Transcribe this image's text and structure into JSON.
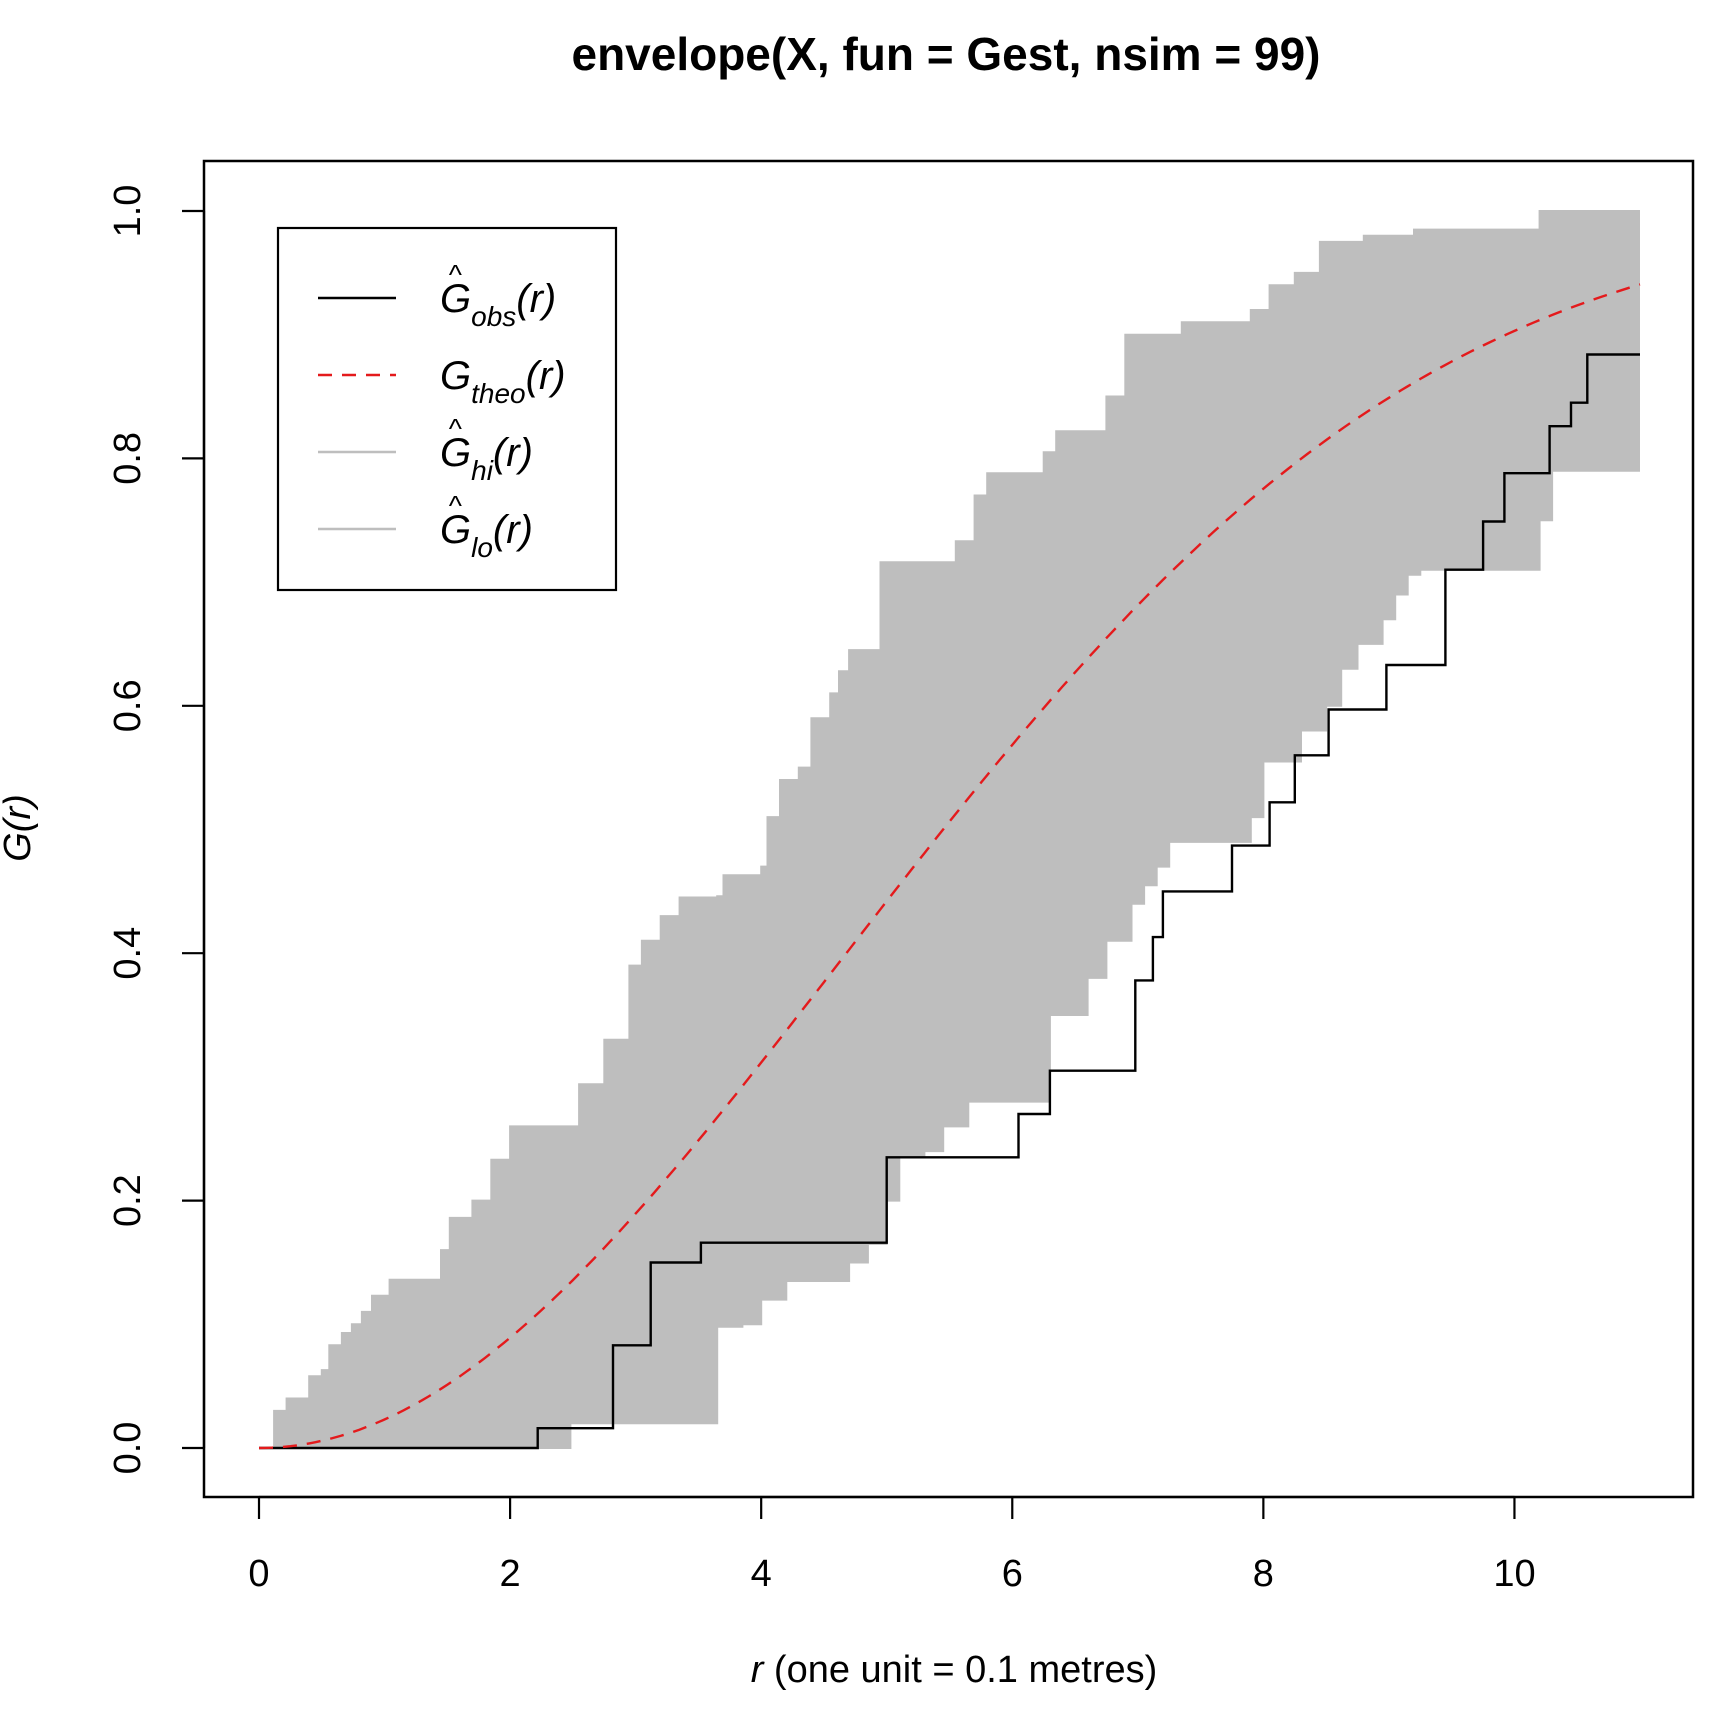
{
  "chart_data": {
    "type": "line",
    "title": "envelope(X, fun = Gest, nsim = 99)",
    "xlabel": {
      "var": "r",
      "rest": " (one unit = 0.1 metres)"
    },
    "ylabel": {
      "main": "G",
      "arg": "(r)"
    },
    "xlim": [
      0,
      11
    ],
    "ylim": [
      0,
      1
    ],
    "x_ticks": [
      0,
      2,
      4,
      6,
      8,
      10
    ],
    "x_tick_labels": [
      "0",
      "2",
      "4",
      "6",
      "8",
      "10"
    ],
    "y_ticks": [
      0,
      0.2,
      0.4,
      0.6,
      0.8,
      1.0
    ],
    "y_tick_labels": [
      "0.0",
      "0.2",
      "0.4",
      "0.6",
      "0.8",
      "1.0"
    ],
    "legend_position": "top-left",
    "colors": {
      "obs": "#000000",
      "theo": "#e41a1c",
      "envelope": "#bebebe"
    },
    "legend": [
      {
        "main": "G",
        "hat": "^",
        "sub": "obs",
        "arg": "(r)",
        "color": "#000000",
        "dash": "solid"
      },
      {
        "main": "G",
        "hat": "",
        "sub": "theo",
        "arg": "(r)",
        "color": "#e41a1c",
        "dash": "dashed"
      },
      {
        "main": "G",
        "hat": "^",
        "sub": "hi",
        "arg": "(r)",
        "color": "#bebebe",
        "dash": "solid"
      },
      {
        "main": "G",
        "hat": "^",
        "sub": "lo",
        "arg": "(r)",
        "color": "#bebebe",
        "dash": "solid"
      }
    ],
    "series": [
      {
        "key": "obs",
        "step": true,
        "points": [
          [
            0,
            0
          ],
          [
            2.22,
            0
          ],
          [
            2.22,
            0.016
          ],
          [
            2.82,
            0.016
          ],
          [
            2.82,
            0.083
          ],
          [
            3.12,
            0.083
          ],
          [
            3.12,
            0.15
          ],
          [
            3.52,
            0.15
          ],
          [
            3.52,
            0.166
          ],
          [
            5.0,
            0.166
          ],
          [
            5.0,
            0.235
          ],
          [
            6.05,
            0.235
          ],
          [
            6.05,
            0.27
          ],
          [
            6.3,
            0.27
          ],
          [
            6.3,
            0.305
          ],
          [
            6.98,
            0.305
          ],
          [
            6.98,
            0.378
          ],
          [
            7.12,
            0.378
          ],
          [
            7.12,
            0.413
          ],
          [
            7.2,
            0.413
          ],
          [
            7.2,
            0.45
          ],
          [
            7.75,
            0.45
          ],
          [
            7.75,
            0.487
          ],
          [
            8.05,
            0.487
          ],
          [
            8.05,
            0.522
          ],
          [
            8.25,
            0.522
          ],
          [
            8.25,
            0.56
          ],
          [
            8.52,
            0.56
          ],
          [
            8.52,
            0.597
          ],
          [
            8.98,
            0.597
          ],
          [
            8.98,
            0.633
          ],
          [
            9.45,
            0.633
          ],
          [
            9.45,
            0.71
          ],
          [
            9.75,
            0.71
          ],
          [
            9.75,
            0.749
          ],
          [
            9.92,
            0.749
          ],
          [
            9.92,
            0.788
          ],
          [
            10.28,
            0.788
          ],
          [
            10.28,
            0.826
          ],
          [
            10.45,
            0.826
          ],
          [
            10.45,
            0.845
          ],
          [
            10.58,
            0.845
          ],
          [
            10.58,
            0.884
          ],
          [
            11.0,
            0.884
          ]
        ]
      },
      {
        "key": "theo",
        "formula": "1 - exp(-0.02334*r^2)"
      },
      {
        "key": "hi",
        "step": true,
        "points": [
          [
            0.08,
            0
          ],
          [
            0.12,
            0.03
          ],
          [
            0.22,
            0.04
          ],
          [
            0.35,
            0.04
          ],
          [
            0.4,
            0.058
          ],
          [
            0.5,
            0.063
          ],
          [
            0.56,
            0.083
          ],
          [
            0.66,
            0.093
          ],
          [
            0.74,
            0.1
          ],
          [
            0.82,
            0.11
          ],
          [
            0.9,
            0.123
          ],
          [
            0.98,
            0.123
          ],
          [
            1.04,
            0.136
          ],
          [
            1.35,
            0.136
          ],
          [
            1.45,
            0.16
          ],
          [
            1.52,
            0.186
          ],
          [
            1.7,
            0.2
          ],
          [
            1.85,
            0.233
          ],
          [
            2.0,
            0.26
          ],
          [
            2.45,
            0.26
          ],
          [
            2.55,
            0.294
          ],
          [
            2.75,
            0.33
          ],
          [
            2.95,
            0.39
          ],
          [
            3.05,
            0.41
          ],
          [
            3.2,
            0.43
          ],
          [
            3.35,
            0.445
          ],
          [
            3.65,
            0.446
          ],
          [
            3.7,
            0.463
          ],
          [
            3.95,
            0.463
          ],
          [
            4.0,
            0.47
          ],
          [
            4.05,
            0.51
          ],
          [
            4.15,
            0.54
          ],
          [
            4.3,
            0.55
          ],
          [
            4.4,
            0.59
          ],
          [
            4.55,
            0.61
          ],
          [
            4.62,
            0.628
          ],
          [
            4.7,
            0.645
          ],
          [
            4.9,
            0.645
          ],
          [
            4.95,
            0.716
          ],
          [
            5.45,
            0.716
          ],
          [
            5.55,
            0.733
          ],
          [
            5.7,
            0.77
          ],
          [
            5.8,
            0.788
          ],
          [
            6.15,
            0.788
          ],
          [
            6.25,
            0.805
          ],
          [
            6.35,
            0.822
          ],
          [
            6.65,
            0.822
          ],
          [
            6.75,
            0.85
          ],
          [
            6.9,
            0.9
          ],
          [
            7.25,
            0.9
          ],
          [
            7.35,
            0.91
          ],
          [
            7.8,
            0.91
          ],
          [
            7.9,
            0.92
          ],
          [
            8.05,
            0.94
          ],
          [
            8.25,
            0.95
          ],
          [
            8.45,
            0.975
          ],
          [
            8.8,
            0.98
          ],
          [
            9.2,
            0.985
          ],
          [
            10.1,
            0.985
          ],
          [
            10.2,
            1.0
          ],
          [
            11.0,
            1.0
          ]
        ]
      },
      {
        "key": "lo",
        "step": true,
        "points": [
          [
            0,
            0
          ],
          [
            2.48,
            0
          ],
          [
            2.48,
            0.02
          ],
          [
            3.6,
            0.02
          ],
          [
            3.65,
            0.098
          ],
          [
            3.85,
            0.1
          ],
          [
            4.0,
            0.12
          ],
          [
            4.2,
            0.135
          ],
          [
            4.6,
            0.135
          ],
          [
            4.7,
            0.15
          ],
          [
            4.85,
            0.165
          ],
          [
            5.0,
            0.2
          ],
          [
            5.1,
            0.235
          ],
          [
            5.3,
            0.24
          ],
          [
            5.45,
            0.26
          ],
          [
            5.65,
            0.28
          ],
          [
            6.2,
            0.28
          ],
          [
            6.3,
            0.35
          ],
          [
            6.55,
            0.35
          ],
          [
            6.6,
            0.38
          ],
          [
            6.75,
            0.41
          ],
          [
            6.95,
            0.44
          ],
          [
            7.05,
            0.455
          ],
          [
            7.15,
            0.47
          ],
          [
            7.25,
            0.49
          ],
          [
            7.75,
            0.49
          ],
          [
            7.9,
            0.51
          ],
          [
            8.0,
            0.555
          ],
          [
            8.25,
            0.555
          ],
          [
            8.3,
            0.58
          ],
          [
            8.5,
            0.6
          ],
          [
            8.62,
            0.63
          ],
          [
            8.75,
            0.65
          ],
          [
            8.95,
            0.67
          ],
          [
            9.05,
            0.69
          ],
          [
            9.15,
            0.706
          ],
          [
            9.25,
            0.71
          ],
          [
            10.0,
            0.71
          ],
          [
            10.2,
            0.75
          ],
          [
            10.3,
            0.79
          ],
          [
            11.0,
            0.79
          ]
        ]
      }
    ]
  }
}
